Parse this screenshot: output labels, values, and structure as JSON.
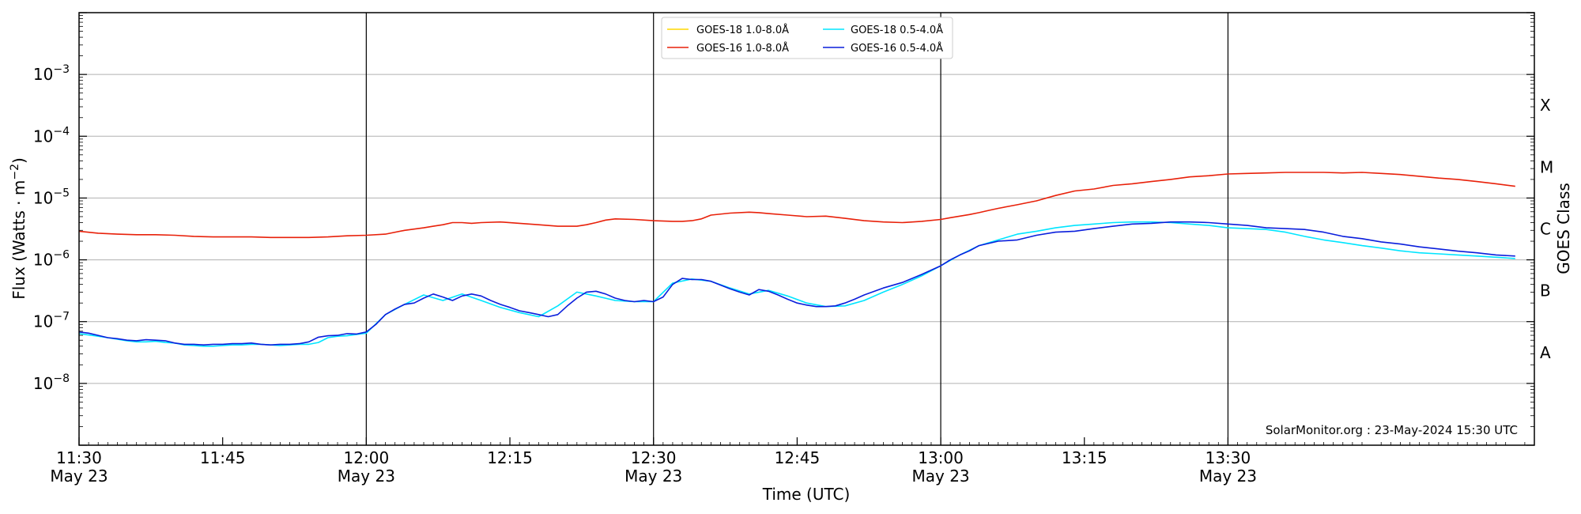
{
  "chart_data": {
    "type": "line",
    "xlabel": "Time (UTC)",
    "ylabel_main": "Flux (Watts · m",
    "ylabel_sup": "−2",
    "ylabel_end": ")",
    "ylabel_right": "GOES Class",
    "y_scale": "log",
    "ylim": [
      1e-09,
      0.01
    ],
    "xlim_minutes": [
      690,
      842
    ],
    "x_ticks": [
      {
        "t": 690,
        "time": "11:30",
        "date": "May 23"
      },
      {
        "t": 705,
        "time": "11:45",
        "date": ""
      },
      {
        "t": 720,
        "time": "12:00",
        "date": "May 23"
      },
      {
        "t": 735,
        "time": "12:15",
        "date": ""
      },
      {
        "t": 750,
        "time": "12:30",
        "date": "May 23"
      },
      {
        "t": 765,
        "time": "12:45",
        "date": ""
      },
      {
        "t": 780,
        "time": "13:00",
        "date": "May 23"
      },
      {
        "t": 795,
        "time": "13:15",
        "date": ""
      },
      {
        "t": 810,
        "time": "13:30",
        "date": "May 23"
      }
    ],
    "vlines_minutes": [
      720,
      750,
      780,
      810
    ],
    "y_ticks": [
      {
        "exp": -8,
        "base": "10",
        "sup": "−8"
      },
      {
        "exp": -7,
        "base": "10",
        "sup": "−7"
      },
      {
        "exp": -6,
        "base": "10",
        "sup": "−6"
      },
      {
        "exp": -5,
        "base": "10",
        "sup": "−5"
      },
      {
        "exp": -4,
        "base": "10",
        "sup": "−4"
      },
      {
        "exp": -3,
        "base": "10",
        "sup": "−3"
      }
    ],
    "grid_exps": [
      -8,
      -7,
      -6,
      -5,
      -4,
      -3
    ],
    "goes_classes": [
      {
        "label": "A",
        "exp": -7.5
      },
      {
        "label": "B",
        "exp": -6.5
      },
      {
        "label": "C",
        "exp": -5.5
      },
      {
        "label": "M",
        "exp": -4.5
      },
      {
        "label": "X",
        "exp": -3.5
      }
    ],
    "legend": [
      {
        "label": "GOES-18 1.0-8.0Å",
        "color": "#ffd700"
      },
      {
        "label": "GOES-18 0.5-4.0Å",
        "color": "#00e5ff"
      },
      {
        "label": "GOES-16 1.0-8.0Å",
        "color": "#e8210a"
      },
      {
        "label": "GOES-16 0.5-4.0Å",
        "color": "#0a1edc"
      }
    ],
    "annotation": "SolarMonitor.org : 23-May-2024 15:30 UTC",
    "series": [
      {
        "name": "GOES-16 1.0-8.0Å",
        "color": "#e8210a",
        "x": [
          690,
          692,
          694,
          696,
          698,
          700,
          702,
          704,
          706,
          708,
          710,
          712,
          714,
          716,
          718,
          720,
          722,
          724,
          726,
          727,
          728,
          729,
          730,
          731,
          732,
          734,
          736,
          738,
          740,
          742,
          743,
          744,
          745,
          746,
          748,
          750,
          752,
          753,
          754,
          755,
          756,
          758,
          760,
          761,
          762,
          764,
          766,
          768,
          770,
          772,
          774,
          776,
          778,
          780,
          781,
          782,
          783,
          784,
          785,
          786,
          788,
          790,
          792,
          794,
          796,
          798,
          800,
          802,
          804,
          806,
          808,
          810,
          812,
          814,
          816,
          818,
          820,
          822,
          824,
          826,
          828,
          830,
          832,
          834,
          836,
          838,
          840
        ],
        "y": [
          2.9e-06,
          2.7e-06,
          2.6e-06,
          2.55e-06,
          2.55e-06,
          2.5e-06,
          2.4e-06,
          2.35e-06,
          2.35e-06,
          2.35e-06,
          2.3e-06,
          2.3e-06,
          2.3e-06,
          2.35e-06,
          2.45e-06,
          2.5e-06,
          2.6e-06,
          3e-06,
          3.3e-06,
          3.5e-06,
          3.7e-06,
          4e-06,
          4e-06,
          3.9e-06,
          4e-06,
          4.1e-06,
          3.9e-06,
          3.7e-06,
          3.5e-06,
          3.5e-06,
          3.7e-06,
          4e-06,
          4.4e-06,
          4.6e-06,
          4.5e-06,
          4.3e-06,
          4.2e-06,
          4.2e-06,
          4.3e-06,
          4.6e-06,
          5.3e-06,
          5.7e-06,
          5.9e-06,
          5.8e-06,
          5.6e-06,
          5.3e-06,
          5e-06,
          5.1e-06,
          4.7e-06,
          4.3e-06,
          4.1e-06,
          4e-06,
          4.2e-06,
          4.5e-06,
          4.8e-06,
          5.1e-06,
          5.4e-06,
          5.8e-06,
          6.3e-06,
          6.8e-06,
          7.8e-06,
          9e-06,
          1.1e-05,
          1.3e-05,
          1.4e-05,
          1.6e-05,
          1.7e-05,
          1.85e-05,
          2e-05,
          2.2e-05,
          2.3e-05,
          2.45e-05,
          2.5e-05,
          2.55e-05,
          2.6e-05,
          2.6e-05,
          2.6e-05,
          2.55e-05,
          2.6e-05,
          2.5e-05,
          2.4e-05,
          2.25e-05,
          2.1e-05,
          2e-05,
          1.85e-05,
          1.7e-05,
          1.55e-05
        ]
      },
      {
        "name": "GOES-18 0.5-4.0Å",
        "color": "#00e5ff",
        "x": [
          690,
          692,
          694,
          695,
          696,
          697,
          698,
          699,
          700,
          701,
          702,
          703,
          704,
          705,
          706,
          707,
          708,
          709,
          710,
          711,
          712,
          713,
          714,
          715,
          716,
          717,
          718,
          719,
          720,
          722,
          724,
          726,
          728,
          730,
          732,
          734,
          736,
          738,
          740,
          742,
          744,
          746,
          748,
          750,
          752,
          754,
          756,
          758,
          760,
          762,
          764,
          766,
          768,
          770,
          772,
          774,
          776,
          778,
          780,
          782,
          784,
          786,
          788,
          790,
          792,
          794,
          796,
          798,
          800,
          802,
          804,
          806,
          808,
          810,
          812,
          814,
          816,
          818,
          820,
          822,
          824,
          826,
          828,
          830,
          832,
          834,
          836,
          838,
          840
        ],
        "y": [
          6.4e-08,
          5.8e-08,
          5.2e-08,
          4.9e-08,
          4.7e-08,
          4.7e-08,
          4.8e-08,
          4.6e-08,
          4.5e-08,
          4.2e-08,
          4.1e-08,
          4e-08,
          4e-08,
          4.1e-08,
          4.2e-08,
          4.2e-08,
          4.3e-08,
          4.3e-08,
          4.2e-08,
          4.1e-08,
          4.2e-08,
          4.3e-08,
          4.3e-08,
          4.6e-08,
          5.5e-08,
          5.8e-08,
          5.9e-08,
          6.2e-08,
          6.5e-08,
          1.3e-07,
          1.9e-07,
          2.7e-07,
          2.2e-07,
          2.8e-07,
          2.2e-07,
          1.7e-07,
          1.4e-07,
          1.2e-07,
          1.8e-07,
          3e-07,
          2.6e-07,
          2.2e-07,
          2.1e-07,
          2.1e-07,
          4.2e-07,
          4.9e-07,
          4.5e-07,
          3.5e-07,
          2.8e-07,
          3.2e-07,
          2.6e-07,
          2e-07,
          1.75e-07,
          1.8e-07,
          2.2e-07,
          3e-07,
          4e-07,
          5.5e-07,
          8e-07,
          1.2e-06,
          1.7e-06,
          2.1e-06,
          2.6e-06,
          2.9e-06,
          3.3e-06,
          3.6e-06,
          3.8e-06,
          4e-06,
          4.1e-06,
          4.1e-06,
          4e-06,
          3.8e-06,
          3.6e-06,
          3.3e-06,
          3.2e-06,
          3.1e-06,
          2.8e-06,
          2.4e-06,
          2.1e-06,
          1.9e-06,
          1.7e-06,
          1.55e-06,
          1.4e-06,
          1.3e-06,
          1.25e-06,
          1.2e-06,
          1.15e-06,
          1.1e-06,
          1.05e-06
        ]
      },
      {
        "name": "GOES-16 0.5-4.0Å",
        "color": "#0a1edc",
        "x": [
          690,
          691,
          692,
          693,
          694,
          695,
          696,
          697,
          698,
          699,
          700,
          701,
          702,
          703,
          704,
          705,
          706,
          707,
          708,
          709,
          710,
          711,
          712,
          713,
          714,
          715,
          716,
          717,
          718,
          719,
          720,
          721,
          722,
          723,
          724,
          725,
          726,
          727,
          728,
          729,
          730,
          731,
          732,
          733,
          734,
          735,
          736,
          737,
          738,
          739,
          740,
          741,
          742,
          743,
          744,
          745,
          746,
          747,
          748,
          749,
          750,
          751,
          752,
          753,
          754,
          755,
          756,
          757,
          758,
          759,
          760,
          761,
          762,
          763,
          764,
          765,
          766,
          767,
          768,
          769,
          770,
          771,
          772,
          774,
          776,
          778,
          780,
          781,
          782,
          783,
          784,
          786,
          788,
          790,
          792,
          794,
          796,
          798,
          800,
          802,
          804,
          806,
          808,
          810,
          812,
          814,
          816,
          818,
          820,
          822,
          824,
          826,
          828,
          830,
          832,
          834,
          836,
          838,
          840
        ],
        "y": [
          6.8e-08,
          6.5e-08,
          6e-08,
          5.5e-08,
          5.3e-08,
          5e-08,
          4.9e-08,
          5.1e-08,
          5e-08,
          4.9e-08,
          4.5e-08,
          4.3e-08,
          4.3e-08,
          4.2e-08,
          4.3e-08,
          4.3e-08,
          4.4e-08,
          4.4e-08,
          4.5e-08,
          4.3e-08,
          4.2e-08,
          4.3e-08,
          4.3e-08,
          4.4e-08,
          4.7e-08,
          5.6e-08,
          5.9e-08,
          6e-08,
          6.4e-08,
          6.3e-08,
          6.8e-08,
          9e-08,
          1.3e-07,
          1.6e-07,
          1.9e-07,
          2e-07,
          2.4e-07,
          2.8e-07,
          2.5e-07,
          2.2e-07,
          2.6e-07,
          2.8e-07,
          2.6e-07,
          2.2e-07,
          1.9e-07,
          1.7e-07,
          1.5e-07,
          1.4e-07,
          1.3e-07,
          1.2e-07,
          1.3e-07,
          1.8e-07,
          2.4e-07,
          3e-07,
          3.1e-07,
          2.8e-07,
          2.4e-07,
          2.2e-07,
          2.1e-07,
          2.2e-07,
          2.1e-07,
          2.5e-07,
          4e-07,
          5e-07,
          4.8e-07,
          4.8e-07,
          4.5e-07,
          3.9e-07,
          3.4e-07,
          3e-07,
          2.7e-07,
          3.3e-07,
          3.1e-07,
          2.7e-07,
          2.3e-07,
          2e-07,
          1.85e-07,
          1.75e-07,
          1.75e-07,
          1.8e-07,
          2e-07,
          2.3e-07,
          2.7e-07,
          3.5e-07,
          4.3e-07,
          5.8e-07,
          8e-07,
          1e-06,
          1.2e-06,
          1.4e-06,
          1.7e-06,
          2e-06,
          2.1e-06,
          2.5e-06,
          2.8e-06,
          2.9e-06,
          3.2e-06,
          3.5e-06,
          3.8e-06,
          3.9e-06,
          4.1e-06,
          4.1e-06,
          4e-06,
          3.8e-06,
          3.6e-06,
          3.3e-06,
          3.2e-06,
          3.1e-06,
          2.8e-06,
          2.4e-06,
          2.2e-06,
          1.95e-06,
          1.8e-06,
          1.62e-06,
          1.5e-06,
          1.38e-06,
          1.3e-06,
          1.2e-06,
          1.15e-06
        ]
      }
    ]
  }
}
